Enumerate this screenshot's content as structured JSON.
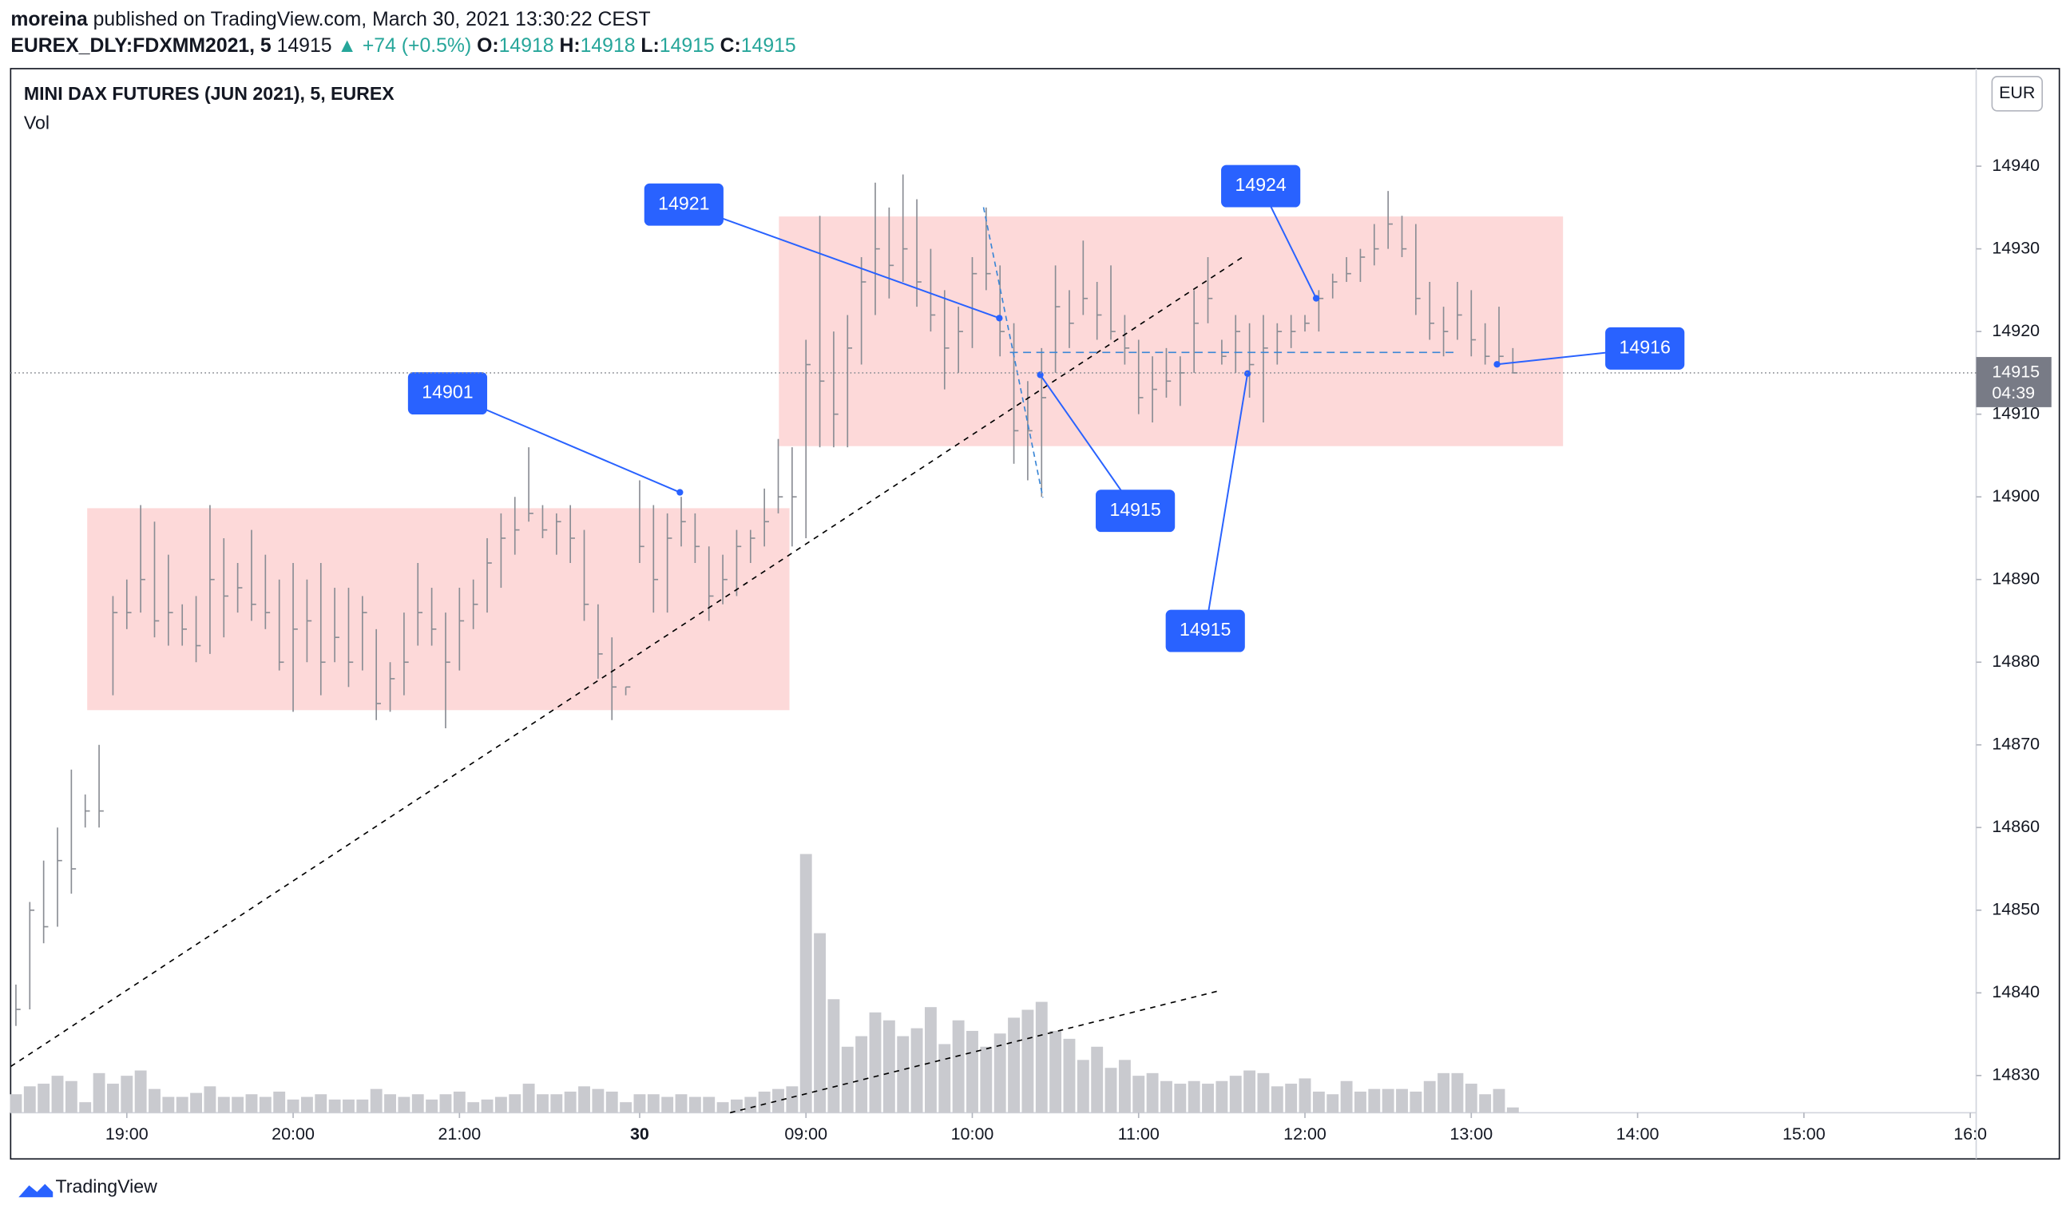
{
  "header": {
    "author": "moreina",
    "published": "published on TradingView.com, March 30, 2021 13:30:22 CEST",
    "symbol": "EUREX_DLY:FDXMM2021, 5",
    "last": "14915",
    "change": "▲ +74 (+0.5%)",
    "ohlc": [
      {
        "label": "O:",
        "value": "14918"
      },
      {
        "label": "H:",
        "value": "14918"
      },
      {
        "label": "L:",
        "value": "14915"
      },
      {
        "label": "C:",
        "value": "14915"
      }
    ]
  },
  "footer": "TradingView",
  "chart_data": {
    "type": "ohlc",
    "title": "MINI DAX FUTURES (JUN 2021), 5, EUREX",
    "volume_label": "Vol",
    "currency": "EUR",
    "last_price": 14915,
    "countdown": "04:39",
    "ylim": [
      14825.5,
      14951.8
    ],
    "yticks": [
      14830,
      14840,
      14850,
      14860,
      14870,
      14880,
      14890,
      14900,
      14910,
      14920,
      14930,
      14940
    ],
    "xticks": [
      {
        "value": 8,
        "label": "19:00"
      },
      {
        "value": 20,
        "label": "20:00"
      },
      {
        "value": 32,
        "label": "21:00"
      },
      {
        "value": 45,
        "label": "30"
      },
      {
        "value": 57,
        "label": "09:00"
      },
      {
        "value": 69,
        "label": "10:00"
      },
      {
        "value": 81,
        "label": "11:00"
      },
      {
        "value": 93,
        "label": "12:00"
      },
      {
        "value": 105,
        "label": "13:00"
      },
      {
        "value": 117,
        "label": "14:00"
      },
      {
        "value": 129,
        "label": "15:00"
      },
      {
        "value": 141,
        "label": "16:0"
      }
    ],
    "color": "#8a8d94",
    "volume_color": "#c9cacf",
    "volume_lim": [
      0,
      2000
    ],
    "high": [
      14841,
      14851,
      14856,
      14860,
      14867,
      14864,
      14870,
      14888,
      14890,
      14899,
      14897,
      14893,
      14887,
      14888,
      14899,
      14895,
      14892,
      14896,
      14893,
      14890,
      14892,
      14890,
      14892,
      14889,
      14889,
      14888,
      14884,
      14880,
      14886,
      14892,
      14889,
      14886,
      14889,
      14890,
      14895,
      14898,
      14900,
      14906,
      14899,
      14898,
      14899,
      14896,
      14887,
      14883,
      14877,
      14902,
      14899,
      14898,
      14900,
      14898,
      14894,
      14893,
      14896,
      14896,
      14901,
      14907,
      14906,
      14919,
      14934,
      14920,
      14922,
      14929,
      14938,
      14935,
      14939,
      14936,
      14930,
      14925,
      14923,
      14929,
      14935,
      14928,
      14921,
      14914,
      14918,
      14928,
      14925,
      14931,
      14926,
      14928,
      14922,
      14919,
      14917,
      14918,
      14917,
      14925,
      14929,
      14919,
      14922,
      14921,
      14922,
      14921,
      14922,
      14922,
      14925,
      14927,
      14929,
      14930,
      14933,
      14937,
      14934,
      14933,
      14926,
      14923,
      14926,
      14925,
      14921,
      14923,
      14918
    ],
    "low": [
      14836,
      14838,
      14846,
      14848,
      14852,
      14860,
      14860,
      14876,
      14884,
      14886,
      14883,
      14882,
      14882,
      14880,
      14881,
      14883,
      14886,
      14885,
      14884,
      14879,
      14874,
      14880,
      14876,
      14880,
      14877,
      14879,
      14873,
      14874,
      14876,
      14882,
      14882,
      14872,
      14879,
      14884,
      14886,
      14889,
      14893,
      14897,
      14895,
      14893,
      14892,
      14885,
      14878,
      14873,
      14876,
      14892,
      14886,
      14886,
      14894,
      14892,
      14885,
      14887,
      14888,
      14892,
      14894,
      14898,
      14894,
      14895,
      14906,
      14906,
      14906,
      14916,
      14922,
      14924,
      14926,
      14923,
      14920,
      14913,
      14915,
      14918,
      14925,
      14917,
      14904,
      14902,
      14900,
      14915,
      14918,
      14922,
      14919,
      14919,
      14916,
      14910,
      14909,
      14912,
      14911,
      14915,
      14921,
      14916,
      14915,
      14912,
      14909,
      14916,
      14918,
      14920,
      14920,
      14924,
      14926,
      14926,
      14928,
      14930,
      14929,
      14922,
      14919,
      14917,
      14919,
      14917,
      14916,
      14916,
      14915
    ],
    "close": [
      14838,
      14850,
      14848,
      14856,
      14855,
      14862,
      14862,
      14886,
      14886,
      14890,
      14885,
      14886,
      14884,
      14882,
      14890,
      14888,
      14889,
      14887,
      14886,
      14880,
      14884,
      14885,
      14880,
      14883,
      14880,
      14886,
      14875,
      14878,
      14880,
      14886,
      14884,
      14880,
      14885,
      14887,
      14892,
      14895,
      14896,
      14898,
      14896,
      14897,
      14895,
      14887,
      14881,
      14877,
      14877,
      14894,
      14890,
      14895,
      14897,
      14894,
      14888,
      14890,
      14894,
      14895,
      14897,
      14900,
      14900,
      14916,
      14914,
      14910,
      14918,
      14926,
      14930,
      14928,
      14930,
      14926,
      14922,
      14918,
      14920,
      14927,
      14927,
      14920,
      14908,
      14908,
      14912,
      14923,
      14921,
      14924,
      14922,
      14920,
      14918,
      14912,
      14913,
      14914,
      14915,
      14921,
      14924,
      14917,
      14920,
      14916,
      14918,
      14920,
      14920,
      14921,
      14924,
      14926,
      14927,
      14929,
      14930,
      14933,
      14930,
      14924,
      14921,
      14920,
      14922,
      14919,
      14917,
      14917,
      14915
    ],
    "volume": [
      140,
      200,
      220,
      280,
      240,
      80,
      300,
      220,
      280,
      320,
      180,
      120,
      120,
      150,
      200,
      120,
      120,
      140,
      120,
      160,
      100,
      120,
      140,
      100,
      100,
      100,
      180,
      140,
      120,
      140,
      100,
      140,
      160,
      80,
      100,
      120,
      140,
      220,
      140,
      140,
      160,
      200,
      180,
      160,
      80,
      140,
      140,
      120,
      140,
      120,
      120,
      80,
      100,
      120,
      160,
      180,
      200,
      1960,
      1360,
      860,
      500,
      580,
      760,
      700,
      580,
      640,
      800,
      520,
      700,
      620,
      500,
      600,
      720,
      780,
      840,
      620,
      560,
      400,
      500,
      340,
      400,
      280,
      300,
      240,
      220,
      240,
      220,
      240,
      280,
      320,
      300,
      200,
      220,
      260,
      160,
      140,
      240,
      160,
      180,
      180,
      180,
      160,
      240,
      300,
      300,
      220,
      140,
      180,
      40
    ],
    "annotations": [
      "14921",
      "14901",
      "14915",
      "14915",
      "14924",
      "14916"
    ]
  }
}
